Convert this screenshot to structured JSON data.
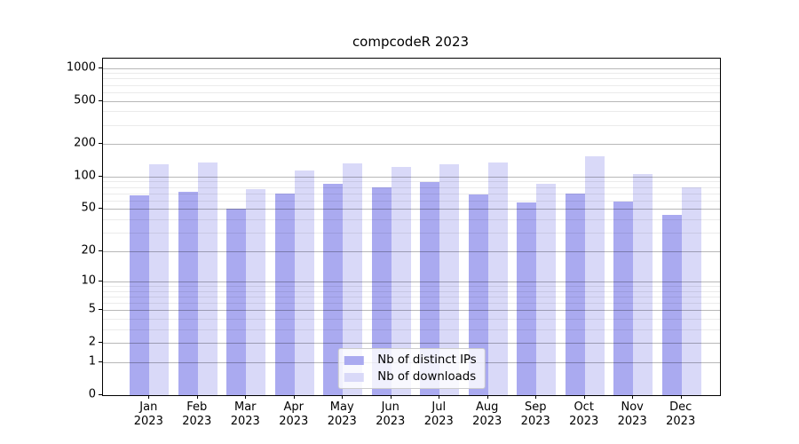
{
  "chart_data": {
    "type": "bar",
    "title": "compcodeR 2023",
    "categories": [
      "Jan",
      "Feb",
      "Mar",
      "Apr",
      "May",
      "Jun",
      "Jul",
      "Aug",
      "Sep",
      "Oct",
      "Nov",
      "Dec"
    ],
    "year_label": "2023",
    "series": [
      {
        "name": "Nb of distinct IPs",
        "color": "#aaaaf0",
        "values": [
          67,
          72,
          50,
          69,
          86,
          80,
          89,
          68,
          58,
          70,
          59,
          44
        ]
      },
      {
        "name": "Nb of downloads",
        "color": "#d9d9f8",
        "values": [
          130,
          135,
          76,
          114,
          132,
          122,
          130,
          135,
          85,
          155,
          105,
          79
        ]
      }
    ],
    "yscale": "log1p",
    "ylim": [
      0,
      1220
    ],
    "y_ticks": [
      0,
      1,
      2,
      5,
      10,
      20,
      50,
      100,
      200,
      500,
      1000
    ],
    "y_minor_ticks": [
      3,
      4,
      6,
      7,
      8,
      9,
      30,
      40,
      60,
      70,
      80,
      90,
      300,
      400,
      600,
      700,
      800,
      900
    ],
    "grid": true,
    "legend_position": "lower center",
    "colors": {
      "major_grid": "rgba(0,0,0,0.28)",
      "minor_grid": "rgba(0,0,0,0.08)",
      "spine": "#000000",
      "text": "#000000",
      "legend_border": "#cccccc",
      "legend_background": "rgba(255,255,255,0.82)"
    }
  }
}
